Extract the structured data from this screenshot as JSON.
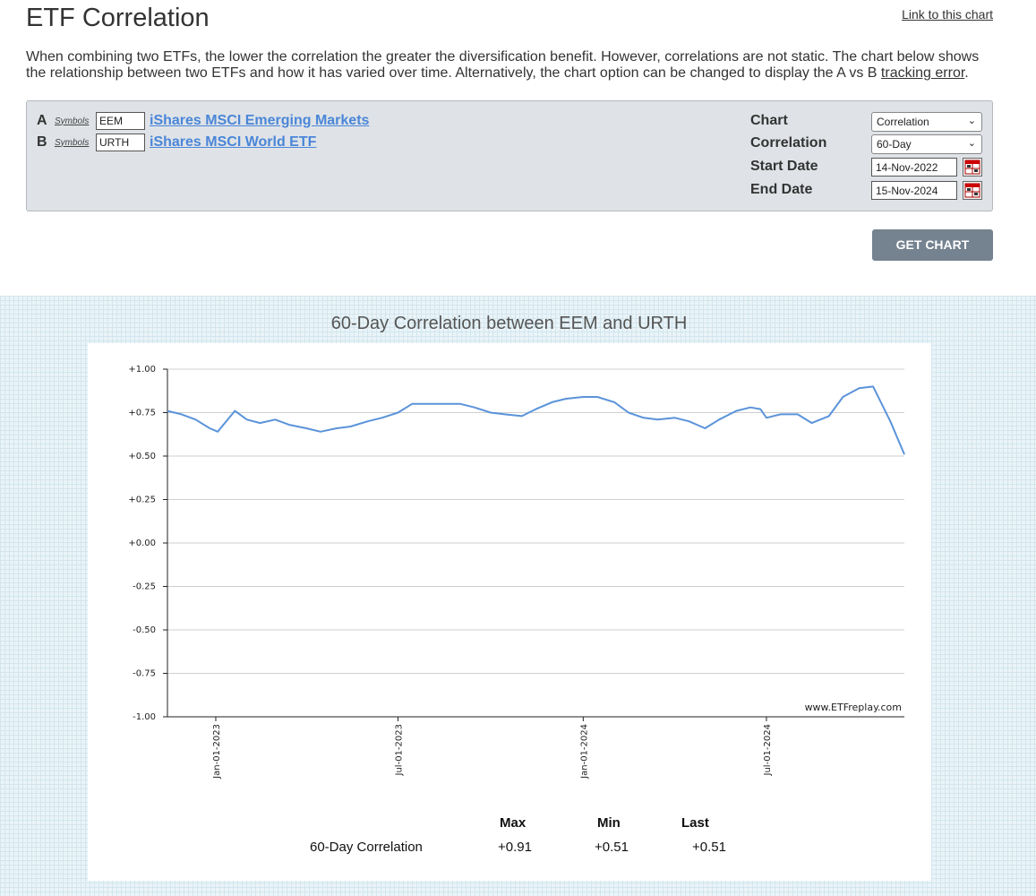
{
  "header": {
    "title": "ETF Correlation",
    "link_chart": "Link to this chart"
  },
  "intro": {
    "text_before": "When combining two ETFs, the lower the correlation the greater the diversification benefit. However, correlations are not static. The chart below shows the relationship between two ETFs and how it has varied over time. Alternatively, the chart option can be changed to display the A vs B ",
    "link": "tracking error",
    "text_after": "."
  },
  "form": {
    "a": {
      "letter": "A",
      "symbols_link": "Symbols",
      "symbol": "EEM",
      "name": "iShares MSCI Emerging Markets"
    },
    "b": {
      "letter": "B",
      "symbols_link": "Symbols",
      "symbol": "URTH",
      "name": "iShares MSCI World ETF"
    },
    "chart_label": "Chart",
    "chart_value": "Correlation",
    "correlation_label": "Correlation",
    "correlation_value": "60-Day",
    "start_label": "Start Date",
    "start_value": "14-Nov-2022",
    "end_label": "End Date",
    "end_value": "15-Nov-2024",
    "button": "GET CHART"
  },
  "chart_data": {
    "type": "line",
    "title": "60-Day Correlation between EEM and URTH",
    "ylim": [
      -1.0,
      1.0
    ],
    "y_ticks": [
      "+1.00",
      "+0.75",
      "+0.50",
      "+0.25",
      "+0.00",
      "-0.25",
      "-0.50",
      "-0.75",
      "-1.00"
    ],
    "x_range": [
      "2022-11-14",
      "2024-11-15"
    ],
    "x_ticks": [
      {
        "date": "2023-01-01",
        "label": "Jan-01-2023"
      },
      {
        "date": "2023-07-01",
        "label": "Jul-01-2023"
      },
      {
        "date": "2024-01-01",
        "label": "Jan-01-2024"
      },
      {
        "date": "2024-07-01",
        "label": "Jul-01-2024"
      }
    ],
    "grid": true,
    "line_color": "#5b93d9",
    "watermark": "www.ETFreplay.com",
    "series": [
      {
        "x": [
          "2022-11-14",
          "2022-11-28",
          "2022-12-12",
          "2022-12-26",
          "2023-01-03",
          "2023-01-10",
          "2023-01-20",
          "2023-02-01",
          "2023-02-14",
          "2023-03-01",
          "2023-03-15",
          "2023-04-01",
          "2023-04-15",
          "2023-05-01",
          "2023-05-15",
          "2023-06-01",
          "2023-06-15",
          "2023-07-01",
          "2023-07-15",
          "2023-08-01",
          "2023-08-15",
          "2023-09-01",
          "2023-09-15",
          "2023-10-01",
          "2023-10-15",
          "2023-11-01",
          "2023-11-15",
          "2023-12-01",
          "2023-12-15",
          "2024-01-01",
          "2024-01-15",
          "2024-02-01",
          "2024-02-15",
          "2024-03-01",
          "2024-03-15",
          "2024-04-01",
          "2024-04-15",
          "2024-05-01",
          "2024-05-15",
          "2024-06-01",
          "2024-06-15",
          "2024-06-25",
          "2024-07-01",
          "2024-07-15",
          "2024-08-01",
          "2024-08-15",
          "2024-09-01",
          "2024-09-15",
          "2024-10-01",
          "2024-10-15",
          "2024-11-01",
          "2024-11-15"
        ],
        "y": [
          0.76,
          0.74,
          0.71,
          0.66,
          0.64,
          0.69,
          0.76,
          0.71,
          0.69,
          0.71,
          0.68,
          0.66,
          0.64,
          0.66,
          0.67,
          0.7,
          0.72,
          0.75,
          0.8,
          0.8,
          0.8,
          0.8,
          0.78,
          0.75,
          0.74,
          0.73,
          0.77,
          0.81,
          0.83,
          0.84,
          0.84,
          0.81,
          0.75,
          0.72,
          0.71,
          0.72,
          0.7,
          0.66,
          0.71,
          0.76,
          0.78,
          0.77,
          0.72,
          0.74,
          0.74,
          0.69,
          0.73,
          0.84,
          0.89,
          0.9,
          0.7,
          0.51
        ]
      }
    ]
  },
  "stats": {
    "headers": [
      "Max",
      "Min",
      "Last"
    ],
    "row_label": "60-Day Correlation",
    "values": [
      "+0.91",
      "+0.51",
      "+0.51"
    ]
  }
}
